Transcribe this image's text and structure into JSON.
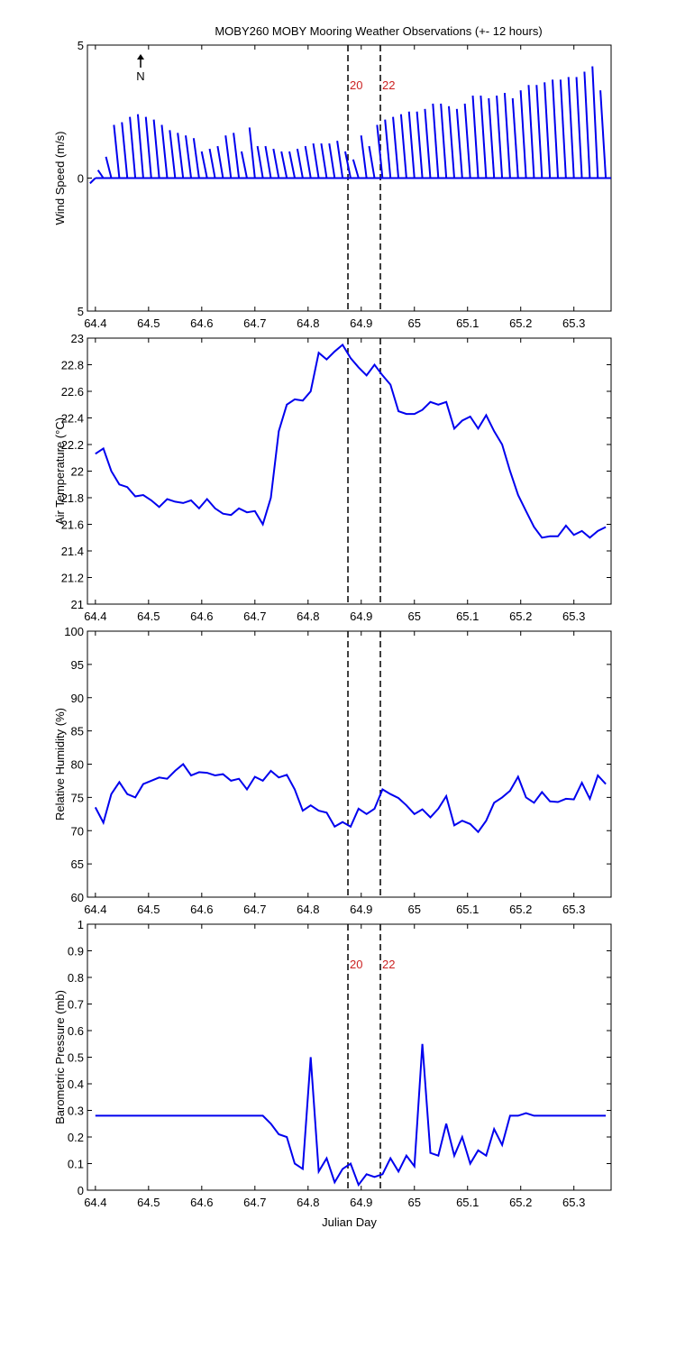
{
  "chart_data": [
    {
      "type": "stick",
      "title": "MOBY260 MOBY Mooring Weather Observations (+- 12 hours)",
      "ylabel": "Wind Speed (m/s)",
      "north_label": "N",
      "xlim": [
        64.385,
        65.37
      ],
      "xticks": [
        64.4,
        64.5,
        64.6,
        64.7,
        64.8,
        64.9,
        65,
        65.1,
        65.2,
        65.3
      ],
      "ylim": [
        -5,
        5
      ],
      "yticks": [
        {
          "value": -5,
          "label": "5"
        },
        0,
        5
      ],
      "vlines": [
        64.875,
        64.936
      ],
      "vline_labels": [
        "20",
        "22"
      ],
      "vline_label_color": "#cc2222",
      "series": [
        {
          "color": "#0000ee",
          "x": [
            64.4,
            64.415,
            64.43,
            64.445,
            64.46,
            64.475,
            64.49,
            64.505,
            64.52,
            64.535,
            64.55,
            64.565,
            64.58,
            64.595,
            64.61,
            64.625,
            64.64,
            64.655,
            64.67,
            64.685,
            64.7,
            64.715,
            64.73,
            64.745,
            64.76,
            64.775,
            64.79,
            64.805,
            64.82,
            64.835,
            64.85,
            64.865,
            64.88,
            64.895,
            64.91,
            64.925,
            64.94,
            64.955,
            64.97,
            64.985,
            65,
            65.015,
            65.03,
            65.045,
            65.06,
            65.075,
            65.09,
            65.105,
            65.12,
            65.135,
            65.15,
            65.165,
            65.18,
            65.195,
            65.21,
            65.225,
            65.24,
            65.255,
            65.27,
            65.285,
            65.3,
            65.315,
            65.33,
            65.345,
            65.36
          ],
          "values": [
            -0.2,
            0.3,
            0.8,
            2.0,
            2.1,
            2.3,
            2.4,
            2.3,
            2.2,
            2.0,
            1.8,
            1.7,
            1.6,
            1.5,
            1.0,
            1.1,
            1.2,
            1.6,
            1.7,
            1.0,
            1.9,
            1.2,
            1.2,
            1.1,
            1.0,
            1.0,
            1.1,
            1.2,
            1.3,
            1.3,
            1.3,
            1.4,
            1.0,
            0.7,
            1.6,
            1.2,
            2.0,
            2.2,
            2.3,
            2.4,
            2.5,
            2.5,
            2.6,
            2.8,
            2.8,
            2.7,
            2.6,
            2.8,
            3.1,
            3.1,
            3.0,
            3.1,
            3.2,
            3.0,
            3.3,
            3.5,
            3.5,
            3.6,
            3.7,
            3.7,
            3.8,
            3.8,
            4.0,
            4.2,
            3.3
          ]
        }
      ]
    },
    {
      "type": "line",
      "ylabel": "Air Temperature (°C)",
      "xlim": [
        64.385,
        65.37
      ],
      "xticks": [
        64.4,
        64.5,
        64.6,
        64.7,
        64.8,
        64.9,
        65,
        65.1,
        65.2,
        65.3
      ],
      "ylim": [
        21,
        23
      ],
      "yticks": [
        21,
        21.2,
        21.4,
        21.6,
        21.8,
        22,
        22.2,
        22.4,
        22.6,
        22.8,
        23
      ],
      "vlines": [
        64.875,
        64.936
      ],
      "series": [
        {
          "color": "#0000ee",
          "x": [
            64.4,
            64.415,
            64.43,
            64.445,
            64.46,
            64.475,
            64.49,
            64.505,
            64.52,
            64.535,
            64.55,
            64.565,
            64.58,
            64.595,
            64.61,
            64.625,
            64.64,
            64.655,
            64.67,
            64.685,
            64.7,
            64.715,
            64.73,
            64.745,
            64.76,
            64.775,
            64.79,
            64.805,
            64.82,
            64.835,
            64.85,
            64.865,
            64.88,
            64.895,
            64.91,
            64.925,
            64.94,
            64.955,
            64.97,
            64.985,
            65,
            65.015,
            65.03,
            65.045,
            65.06,
            65.075,
            65.09,
            65.105,
            65.12,
            65.135,
            65.15,
            65.165,
            65.18,
            65.195,
            65.21,
            65.225,
            65.24,
            65.255,
            65.27,
            65.285,
            65.3,
            65.315,
            65.33,
            65.345,
            65.36
          ],
          "values": [
            22.13,
            22.17,
            22.0,
            21.9,
            21.88,
            21.81,
            21.82,
            21.78,
            21.73,
            21.79,
            21.77,
            21.76,
            21.78,
            21.72,
            21.79,
            21.72,
            21.68,
            21.67,
            21.72,
            21.69,
            21.7,
            21.6,
            21.8,
            22.3,
            22.5,
            22.54,
            22.53,
            22.6,
            22.89,
            22.84,
            22.9,
            22.95,
            22.85,
            22.78,
            22.72,
            22.8,
            22.72,
            22.65,
            22.45,
            22.43,
            22.43,
            22.46,
            22.52,
            22.5,
            22.52,
            22.32,
            22.38,
            22.41,
            22.32,
            22.42,
            22.3,
            22.2,
            22.0,
            21.82,
            21.7,
            21.58,
            21.5,
            21.51,
            21.51,
            21.59,
            21.52,
            21.55,
            21.5,
            21.55,
            21.58
          ]
        }
      ]
    },
    {
      "type": "line",
      "ylabel": "Relative Humidity (%)",
      "xlim": [
        64.385,
        65.37
      ],
      "xticks": [
        64.4,
        64.5,
        64.6,
        64.7,
        64.8,
        64.9,
        65,
        65.1,
        65.2,
        65.3
      ],
      "ylim": [
        60,
        100
      ],
      "yticks": [
        60,
        65,
        70,
        75,
        80,
        85,
        90,
        95,
        100
      ],
      "vlines": [
        64.875,
        64.936
      ],
      "series": [
        {
          "color": "#0000ee",
          "x": [
            64.4,
            64.415,
            64.43,
            64.445,
            64.46,
            64.475,
            64.49,
            64.505,
            64.52,
            64.535,
            64.55,
            64.565,
            64.58,
            64.595,
            64.61,
            64.625,
            64.64,
            64.655,
            64.67,
            64.685,
            64.7,
            64.715,
            64.73,
            64.745,
            64.76,
            64.775,
            64.79,
            64.805,
            64.82,
            64.835,
            64.85,
            64.865,
            64.88,
            64.895,
            64.91,
            64.925,
            64.94,
            64.955,
            64.97,
            64.985,
            65,
            65.015,
            65.03,
            65.045,
            65.06,
            65.075,
            65.09,
            65.105,
            65.12,
            65.135,
            65.15,
            65.165,
            65.18,
            65.195,
            65.21,
            65.225,
            65.24,
            65.255,
            65.27,
            65.285,
            65.3,
            65.315,
            65.33,
            65.345,
            65.36
          ],
          "values": [
            73.5,
            71.2,
            75.5,
            77.3,
            75.5,
            75,
            77,
            77.5,
            78,
            77.8,
            79,
            80,
            78.3,
            78.8,
            78.7,
            78.3,
            78.5,
            77.5,
            77.8,
            76.2,
            78.1,
            77.5,
            79,
            78,
            78.4,
            76.2,
            73,
            73.8,
            73,
            72.7,
            70.6,
            71.3,
            70.6,
            73.3,
            72.5,
            73.3,
            76.2,
            75.5,
            74.9,
            73.8,
            72.5,
            73.2,
            72,
            73.3,
            75.2,
            70.8,
            71.5,
            71,
            69.8,
            71.5,
            74.2,
            75,
            76,
            78.1,
            75,
            74.2,
            75.8,
            74.4,
            74.3,
            74.8,
            74.7,
            77.2,
            74.8,
            78.3,
            77
          ]
        }
      ]
    },
    {
      "type": "line",
      "ylabel": "Barometric Pressure (mb)",
      "xlabel": "Julian Day",
      "xlim": [
        64.385,
        65.37
      ],
      "xticks": [
        64.4,
        64.5,
        64.6,
        64.7,
        64.8,
        64.9,
        65,
        65.1,
        65.2,
        65.3
      ],
      "ylim": [
        0,
        1
      ],
      "yticks": [
        0,
        0.1,
        0.2,
        0.3,
        0.4,
        0.5,
        0.6,
        0.7,
        0.8,
        0.9,
        1
      ],
      "vlines": [
        64.875,
        64.936
      ],
      "vline_labels": [
        "20",
        "22"
      ],
      "vline_label_color": "#cc2222",
      "series": [
        {
          "color": "#0000ee",
          "x": [
            64.4,
            64.415,
            64.43,
            64.445,
            64.46,
            64.475,
            64.49,
            64.505,
            64.52,
            64.535,
            64.55,
            64.565,
            64.58,
            64.595,
            64.61,
            64.625,
            64.64,
            64.655,
            64.67,
            64.685,
            64.7,
            64.715,
            64.73,
            64.745,
            64.76,
            64.775,
            64.79,
            64.805,
            64.82,
            64.835,
            64.85,
            64.865,
            64.88,
            64.895,
            64.91,
            64.925,
            64.94,
            64.955,
            64.97,
            64.985,
            65,
            65.015,
            65.03,
            65.045,
            65.06,
            65.075,
            65.09,
            65.105,
            65.12,
            65.135,
            65.15,
            65.165,
            65.18,
            65.195,
            65.21,
            65.225,
            65.24,
            65.255,
            65.27,
            65.285,
            65.3,
            65.315,
            65.33,
            65.345,
            65.36
          ],
          "values": [
            0.28,
            0.28,
            0.28,
            0.28,
            0.28,
            0.28,
            0.28,
            0.28,
            0.28,
            0.28,
            0.28,
            0.28,
            0.28,
            0.28,
            0.28,
            0.28,
            0.28,
            0.28,
            0.28,
            0.28,
            0.28,
            0.28,
            0.25,
            0.21,
            0.2,
            0.1,
            0.08,
            0.5,
            0.07,
            0.12,
            0.03,
            0.08,
            0.1,
            0.02,
            0.06,
            0.05,
            0.06,
            0.12,
            0.07,
            0.13,
            0.09,
            0.55,
            0.14,
            0.13,
            0.25,
            0.13,
            0.2,
            0.1,
            0.15,
            0.13,
            0.23,
            0.17,
            0.28,
            0.28,
            0.29,
            0.28,
            0.28,
            0.28,
            0.28,
            0.28,
            0.28,
            0.28,
            0.28,
            0.28,
            0.28
          ]
        }
      ]
    }
  ]
}
